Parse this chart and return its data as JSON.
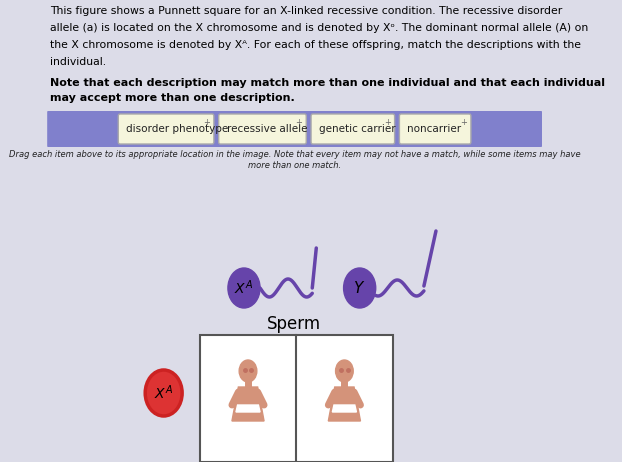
{
  "bg_color": "#dcdce8",
  "text_line1": "This figure shows a Punnett square for an X-linked recessive condition. The recessive disorder",
  "text_line2": "allele (a) is located on the X chromosome and is denoted by Xᵒ. The dominant normal allele (A) on",
  "text_line3": "the X chromosome is denoted by Xᴬ. For each of these offspring, match the descriptions with the",
  "text_line4": "individual.",
  "bold_line1": "Note that each description may match more than one individual and that each individual",
  "bold_line2": "may accept more than one description.",
  "drag_line1": "Drag each item above to its appropriate location in the image. Note that every item may not have a match, while some items may have",
  "drag_line2": "more than one match.",
  "banner_color": "#8080cc",
  "banner_items": [
    "disorder phenotype",
    "recessive allele",
    "genetic carrier",
    "noncarrier"
  ],
  "item_box_color": "#f5f5dc",
  "item_box_border": "#aaaaaa",
  "sperm_color": "#6644aa",
  "sperm_text": "Sperm",
  "egg_circle_color": "#dd3333",
  "egg_circle_edge": "#cc2222",
  "punnett_box_color": "#ffffff",
  "punnett_border": "#555555",
  "figure_color": "#d4937a",
  "figure_detail_color": "#c07060"
}
